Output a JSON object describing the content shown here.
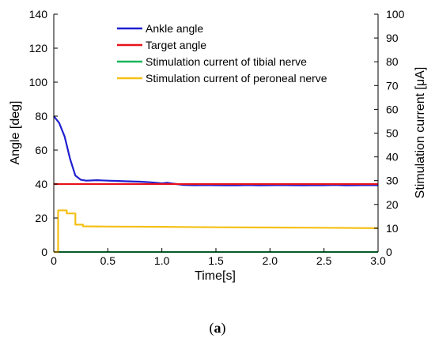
{
  "caption": {
    "open": "(",
    "letter": "a",
    "close": ")"
  },
  "chart_data": {
    "type": "line",
    "xlabel": "Time[s]",
    "ylabel": "Angle [deg]",
    "y2label": "Stimulation current [μA]",
    "xlim": [
      0,
      3.0
    ],
    "ylim": [
      0,
      140
    ],
    "y2lim": [
      0,
      100
    ],
    "x_ticks": [
      0,
      0.5,
      1.0,
      1.5,
      2.0,
      2.5,
      3.0
    ],
    "x_tick_labels": [
      "0",
      "0.5",
      "1.0",
      "1.5",
      "2.0",
      "2.5",
      "3.0"
    ],
    "y_ticks": [
      0,
      20,
      40,
      60,
      80,
      100,
      120,
      140
    ],
    "y_tick_labels": [
      "0",
      "20",
      "40",
      "60",
      "80",
      "100",
      "120",
      "140"
    ],
    "y2_ticks": [
      0,
      10,
      20,
      30,
      40,
      50,
      60,
      70,
      80,
      90,
      100
    ],
    "y2_tick_labels": [
      "0",
      "10",
      "20",
      "30",
      "40",
      "50",
      "60",
      "70",
      "80",
      "90",
      "100"
    ],
    "grid": false,
    "legend_position": "top-center",
    "series": [
      {
        "name": "Ankle angle",
        "axis": "left",
        "color": "#1f1fd0",
        "x": [
          0,
          0.05,
          0.1,
          0.15,
          0.2,
          0.25,
          0.3,
          0.4,
          0.5,
          0.6,
          0.7,
          0.8,
          0.9,
          1.0,
          1.05,
          1.1,
          1.2,
          1.3,
          1.4,
          1.5,
          1.6,
          1.7,
          1.8,
          1.9,
          2.0,
          2.1,
          2.2,
          2.3,
          2.4,
          2.5,
          2.6,
          2.7,
          2.8,
          2.9,
          3.0
        ],
        "y": [
          80,
          76,
          68,
          55,
          45,
          42.5,
          42,
          42.3,
          42,
          41.8,
          41.6,
          41.4,
          41,
          40.4,
          40.8,
          40.3,
          39.5,
          39.3,
          39.4,
          39.3,
          39.2,
          39.2,
          39.4,
          39.2,
          39.3,
          39.4,
          39.3,
          39.2,
          39.3,
          39.3,
          39.5,
          39.2,
          39.3,
          39.4,
          39.3
        ]
      },
      {
        "name": "Target angle",
        "axis": "left",
        "color": "#e8121b",
        "x": [
          0,
          3.0
        ],
        "y": [
          40,
          40
        ]
      },
      {
        "name": "Stimulation current of tibial nerve",
        "axis": "right",
        "color": "#19b45a",
        "x": [
          0,
          3.0
        ],
        "y": [
          0,
          0
        ]
      },
      {
        "name": "Stimulation current of peroneal nerve",
        "axis": "right",
        "color": "#f5c016",
        "x": [
          0,
          0.04,
          0.04,
          0.12,
          0.12,
          0.2,
          0.2,
          0.27,
          0.27,
          0.5,
          1.0,
          1.5,
          2.0,
          2.5,
          3.0
        ],
        "y": [
          0,
          0,
          17.5,
          17.5,
          16.2,
          16.2,
          11.5,
          11.5,
          10.8,
          10.7,
          10.6,
          10.4,
          10.3,
          10.2,
          10.0
        ]
      }
    ]
  }
}
